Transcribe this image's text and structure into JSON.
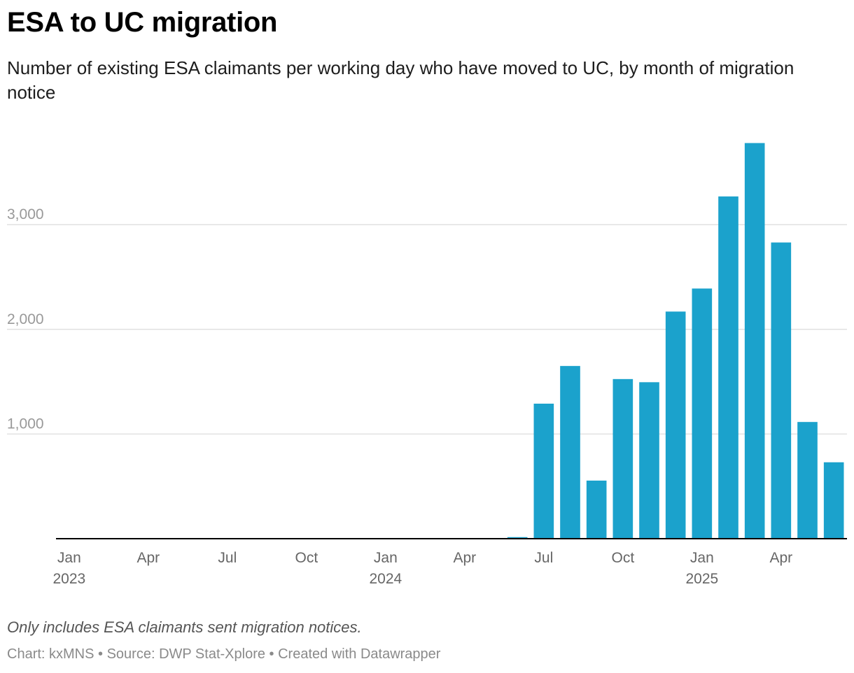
{
  "title": "ESA to UC migration",
  "subtitle": "Number of existing ESA claimants per working day who have moved to UC, by month of migration notice",
  "note": "Only includes ESA claimants sent migration notices.",
  "credits": {
    "chart_label": "Chart: kxMNS",
    "separator": " • ",
    "source": "Source: DWP Stat-Xplore",
    "created": "Created with Datawrapper"
  },
  "colors": {
    "bar": "#1ba2cc",
    "grid": "#e1e1e1",
    "axis": "#000000",
    "tick": "#999999",
    "xtick": "#666666"
  },
  "chart_data": {
    "type": "bar",
    "title": "ESA to UC migration",
    "xlabel": "",
    "ylabel": "",
    "ylim": [
      0,
      3850
    ],
    "grid": true,
    "yticks": [
      {
        "value": 1000,
        "label": "1,000"
      },
      {
        "value": 2000,
        "label": "2,000"
      },
      {
        "value": 3000,
        "label": "3,000"
      }
    ],
    "xticks": [
      {
        "index": 0,
        "label": "Jan",
        "year": "2023"
      },
      {
        "index": 3,
        "label": "Apr",
        "year": ""
      },
      {
        "index": 6,
        "label": "Jul",
        "year": ""
      },
      {
        "index": 9,
        "label": "Oct",
        "year": ""
      },
      {
        "index": 12,
        "label": "Jan",
        "year": "2024"
      },
      {
        "index": 15,
        "label": "Apr",
        "year": ""
      },
      {
        "index": 18,
        "label": "Jul",
        "year": ""
      },
      {
        "index": 21,
        "label": "Oct",
        "year": ""
      },
      {
        "index": 24,
        "label": "Jan",
        "year": "2025"
      },
      {
        "index": 27,
        "label": "Apr",
        "year": ""
      }
    ],
    "categories": [
      "2023-01",
      "2023-02",
      "2023-03",
      "2023-04",
      "2023-05",
      "2023-06",
      "2023-07",
      "2023-08",
      "2023-09",
      "2023-10",
      "2023-11",
      "2023-12",
      "2024-01",
      "2024-02",
      "2024-03",
      "2024-04",
      "2024-05",
      "2024-06",
      "2024-07",
      "2024-08",
      "2024-09",
      "2024-10",
      "2024-11",
      "2024-12",
      "2025-01",
      "2025-02",
      "2025-03",
      "2025-04",
      "2025-05",
      "2025-06"
    ],
    "values": [
      0,
      0,
      0,
      0,
      0,
      0,
      0,
      0,
      0,
      0,
      0,
      0,
      0,
      0,
      0,
      0,
      0,
      15,
      1290,
      1650,
      555,
      1525,
      1495,
      2170,
      2390,
      3270,
      3780,
      2830,
      1115,
      730
    ]
  }
}
